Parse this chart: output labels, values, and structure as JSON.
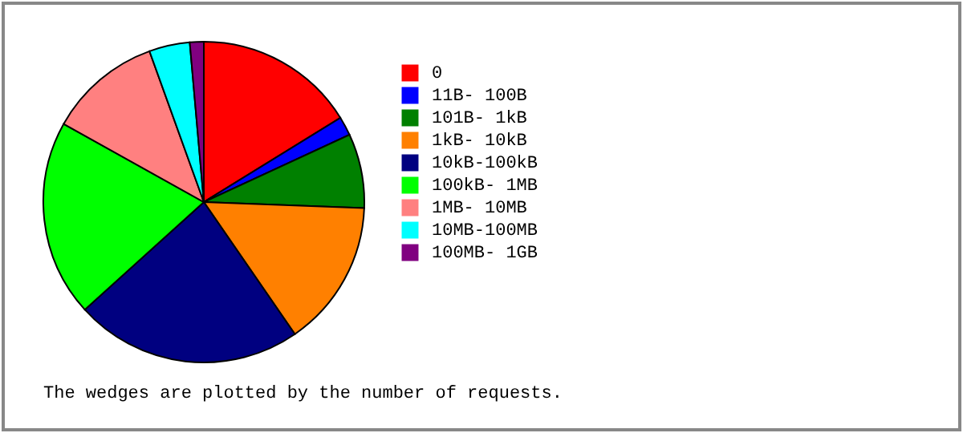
{
  "chart_data": {
    "type": "pie",
    "categories": [
      "0",
      "11B- 100B",
      "101B- 1kB",
      "1kB- 10kB",
      "10kB-100kB",
      "100kB- 1MB",
      "1MB- 10MB",
      "10MB-100MB",
      "100MB- 1GB"
    ],
    "values": [
      16.2,
      1.9,
      7.5,
      14.8,
      22.9,
      19.8,
      11.4,
      4.1,
      1.4
    ],
    "colors": [
      "#ff0000",
      "#0000ff",
      "#008000",
      "#ff8000",
      "#000080",
      "#00ff00",
      "#ff8080",
      "#00ffff",
      "#800080"
    ],
    "legend": "right",
    "annotations": [
      "The wedges are plotted by the number of requests."
    ]
  }
}
